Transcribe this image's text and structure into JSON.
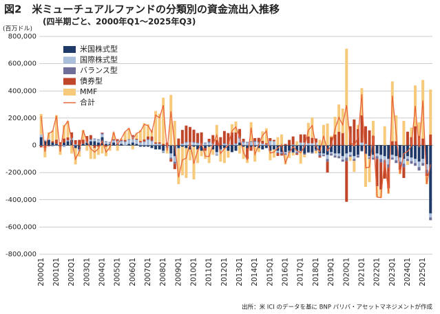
{
  "chart_data": {
    "type": "bar",
    "stacked": true,
    "title": "図2　米ミューチュアルファンドの分類別の資金流出入推移",
    "subtitle": "(四半期ごと、2000年Q1～2025年Q3)",
    "y_label": "(百万ドル)",
    "source": "出所：米 ICI のデータを基に BNP パリバ・アセットマネジメントが作成",
    "categories": [
      "2000Q1",
      null,
      null,
      null,
      "2001Q1",
      null,
      null,
      null,
      "2002Q1",
      null,
      null,
      null,
      "2003Q1",
      null,
      null,
      null,
      "2004Q1",
      null,
      null,
      null,
      "2005Q1",
      null,
      null,
      null,
      "2006Q1",
      null,
      null,
      null,
      "2007Q1",
      null,
      null,
      null,
      "2008Q1",
      null,
      null,
      null,
      "2009Q1",
      null,
      null,
      null,
      "2010Q1",
      null,
      null,
      null,
      "2011Q1",
      null,
      null,
      null,
      "2012Q1",
      null,
      null,
      null,
      "2013Q1",
      null,
      null,
      null,
      "2014Q1",
      null,
      null,
      null,
      "2015Q1",
      null,
      null,
      null,
      "2016Q1",
      null,
      null,
      null,
      "2017Q1",
      null,
      null,
      null,
      "2018Q1",
      null,
      null,
      null,
      "2019Q1",
      null,
      null,
      null,
      "2020Q1",
      null,
      null,
      null,
      "2021Q1",
      null,
      null,
      null,
      "2022Q1",
      null,
      null,
      null,
      "2023Q1",
      null,
      null,
      null,
      "2024Q1",
      null,
      null,
      null,
      "2025Q1",
      null,
      null
    ],
    "series": [
      {
        "name": "米国株式型",
        "color": "#1f3a68",
        "values": [
          60000,
          30000,
          40000,
          20000,
          10000,
          -10000,
          20000,
          30000,
          40000,
          -20000,
          -30000,
          10000,
          20000,
          30000,
          30000,
          20000,
          60000,
          10000,
          10000,
          20000,
          10000,
          10000,
          0,
          10000,
          20000,
          10000,
          -10000,
          -10000,
          -10000,
          -20000,
          -30000,
          -30000,
          -40000,
          -10000,
          -60000,
          -80000,
          -20000,
          -10000,
          -20000,
          -30000,
          -10000,
          -30000,
          -40000,
          -20000,
          -10000,
          -30000,
          -50000,
          -30000,
          -20000,
          -40000,
          -50000,
          -40000,
          20000,
          -10000,
          -20000,
          -10000,
          -10000,
          -20000,
          -30000,
          -20000,
          -40000,
          -30000,
          -40000,
          -50000,
          -50000,
          -40000,
          -50000,
          -40000,
          -40000,
          -60000,
          -50000,
          -50000,
          -30000,
          -60000,
          -60000,
          -70000,
          -50000,
          -60000,
          -60000,
          -80000,
          -60000,
          -50000,
          -80000,
          -70000,
          -40000,
          -60000,
          -80000,
          -70000,
          -60000,
          -70000,
          -80000,
          -100000,
          -70000,
          -80000,
          -90000,
          -100000,
          -80000,
          -90000,
          -100000,
          -120000,
          -100000,
          -140000,
          -500000
        ]
      },
      {
        "name": "国際株式型",
        "color": "#a9bfdc",
        "values": [
          20000,
          10000,
          5000,
          -5000,
          -5000,
          0,
          -10000,
          5000,
          10000,
          5000,
          -10000,
          0,
          5000,
          10000,
          15000,
          20000,
          20000,
          15000,
          10000,
          15000,
          20000,
          20000,
          25000,
          30000,
          40000,
          30000,
          20000,
          25000,
          40000,
          30000,
          10000,
          10000,
          -10000,
          -5000,
          -30000,
          -40000,
          -5000,
          10000,
          20000,
          20000,
          20000,
          15000,
          10000,
          15000,
          20000,
          10000,
          -20000,
          -10000,
          10000,
          5000,
          0,
          10000,
          30000,
          20000,
          20000,
          25000,
          25000,
          20000,
          10000,
          5000,
          30000,
          30000,
          -10000,
          -5000,
          -10000,
          -5000,
          5000,
          -10000,
          20000,
          20000,
          15000,
          15000,
          20000,
          -5000,
          -10000,
          -30000,
          -10000,
          -15000,
          -20000,
          -25000,
          -30000,
          -20000,
          -20000,
          -5000,
          20000,
          10000,
          -10000,
          -20000,
          -20000,
          -30000,
          -30000,
          -40000,
          -20000,
          -30000,
          -30000,
          -35000,
          -20000,
          -25000,
          -30000,
          -40000,
          -30000,
          -40000,
          -30000
        ]
      },
      {
        "name": "バランス型",
        "color": "#6f6f9a",
        "values": [
          -5000,
          -3000,
          -2000,
          -3000,
          2000,
          3000,
          -2000,
          3000,
          5000,
          3000,
          -3000,
          2000,
          3000,
          5000,
          5000,
          5000,
          8000,
          5000,
          5000,
          5000,
          5000,
          5000,
          5000,
          5000,
          5000,
          3000,
          2000,
          3000,
          5000,
          5000,
          2000,
          2000,
          -5000,
          -5000,
          -10000,
          -15000,
          0,
          3000,
          5000,
          5000,
          5000,
          5000,
          5000,
          5000,
          8000,
          5000,
          -5000,
          0,
          5000,
          5000,
          5000,
          5000,
          10000,
          8000,
          5000,
          5000,
          8000,
          5000,
          3000,
          0,
          3000,
          0,
          -8000,
          -10000,
          -10000,
          -8000,
          -5000,
          -10000,
          -5000,
          -8000,
          -5000,
          -10000,
          -10000,
          -15000,
          -10000,
          -20000,
          -15000,
          -15000,
          -15000,
          -15000,
          -25000,
          -15000,
          -15000,
          -15000,
          -5000,
          -5000,
          -10000,
          -15000,
          -20000,
          -25000,
          -25000,
          -25000,
          -15000,
          -20000,
          -20000,
          -25000,
          -15000,
          -20000,
          -20000,
          -25000,
          -20000,
          -25000,
          -20000
        ]
      },
      {
        "name": "債券型",
        "color": "#c0462a",
        "values": [
          -10000,
          -15000,
          -5000,
          10000,
          30000,
          20000,
          30000,
          20000,
          40000,
          30000,
          40000,
          30000,
          40000,
          30000,
          -20000,
          -10000,
          5000,
          -10000,
          0,
          5000,
          10000,
          5000,
          10000,
          0,
          10000,
          5000,
          10000,
          15000,
          20000,
          30000,
          10000,
          10000,
          10000,
          20000,
          -20000,
          -40000,
          50000,
          100000,
          120000,
          110000,
          90000,
          70000,
          80000,
          -20000,
          20000,
          60000,
          40000,
          60000,
          90000,
          80000,
          90000,
          80000,
          60000,
          20000,
          -80000,
          -30000,
          20000,
          30000,
          20000,
          10000,
          20000,
          10000,
          -20000,
          -10000,
          10000,
          40000,
          60000,
          -10000,
          60000,
          60000,
          50000,
          40000,
          30000,
          -10000,
          0,
          -80000,
          60000,
          80000,
          100000,
          90000,
          -300000,
          140000,
          190000,
          120000,
          200000,
          130000,
          110000,
          70000,
          -200000,
          -200000,
          -110000,
          -150000,
          30000,
          30000,
          -40000,
          -80000,
          100000,
          60000,
          140000,
          70000,
          50000,
          -20000,
          80000
        ]
      },
      {
        "name": "MMF",
        "color": "#f7c97a",
        "values": [
          150000,
          -70000,
          50000,
          80000,
          180000,
          -60000,
          100000,
          120000,
          -60000,
          -120000,
          -40000,
          70000,
          -40000,
          -100000,
          -80000,
          -60000,
          -60000,
          -70000,
          -40000,
          50000,
          -40000,
          10000,
          60000,
          80000,
          -30000,
          40000,
          80000,
          120000,
          90000,
          50000,
          230000,
          210000,
          340000,
          -40000,
          370000,
          180000,
          -260000,
          -210000,
          -220000,
          -80000,
          -240000,
          -100000,
          -40000,
          -60000,
          -120000,
          -40000,
          110000,
          -80000,
          -110000,
          -50000,
          60000,
          80000,
          -60000,
          -90000,
          -30000,
          140000,
          -110000,
          -30000,
          70000,
          110000,
          -70000,
          -60000,
          60000,
          80000,
          -70000,
          -40000,
          -20000,
          30000,
          -90000,
          -20000,
          100000,
          150000,
          -20000,
          40000,
          150000,
          160000,
          10000,
          130000,
          200000,
          180000,
          710000,
          -30000,
          -80000,
          30000,
          200000,
          -240000,
          -170000,
          110000,
          -80000,
          -60000,
          140000,
          -40000,
          440000,
          190000,
          -30000,
          180000,
          -30000,
          70000,
          300000,
          100000,
          430000,
          -60000,
          330000
        ]
      },
      {
        "name": "合計",
        "color": "#e8643c",
        "type": "line",
        "values": [
          215000,
          -48000,
          88000,
          102000,
          217000,
          -47000,
          138000,
          178000,
          35000,
          -102000,
          -43000,
          112000,
          28000,
          -25000,
          -50000,
          -25000,
          33000,
          -50000,
          -15000,
          95000,
          5000,
          50000,
          100000,
          125000,
          45000,
          88000,
          102000,
          153000,
          145000,
          95000,
          222000,
          202000,
          295000,
          -40000,
          250000,
          5000,
          -235000,
          -107000,
          -95000,
          25000,
          -135000,
          -40000,
          15000,
          -80000,
          -82000,
          5000,
          75000,
          -60000,
          -25000,
          0,
          105000,
          135000,
          60000,
          -52000,
          -105000,
          130000,
          -67000,
          5000,
          73000,
          105000,
          -57000,
          -50000,
          -18000,
          5000,
          -130000,
          -53000,
          -10000,
          -40000,
          -55000,
          -8000,
          110000,
          145000,
          -10000,
          -50000,
          70000,
          -40000,
          -5000,
          120000,
          205000,
          150000,
          295000,
          25000,
          -5000,
          60000,
          375000,
          -165000,
          -160000,
          75000,
          -380000,
          -385000,
          -105000,
          -355000,
          365000,
          90000,
          -210000,
          -60000,
          -45000,
          -5000,
          290000,
          -15000,
          330000,
          -285000,
          -140000
        ]
      }
    ],
    "ylim": [
      -800000,
      800000
    ],
    "yticks": [
      {
        "value": -800000,
        "label": "-800,000"
      },
      {
        "value": -600000,
        "label": "-600,000"
      },
      {
        "value": -400000,
        "label": "-400,000"
      },
      {
        "value": -200000,
        "label": "-200,000"
      },
      0,
      {
        "value": 200000,
        "label": "200,000"
      },
      {
        "value": 400000,
        "label": "400,000"
      },
      {
        "value": 600000,
        "label": "600,000"
      },
      {
        "value": 800000,
        "label": "800,000"
      }
    ],
    "grid": true,
    "legend": "upper left"
  }
}
